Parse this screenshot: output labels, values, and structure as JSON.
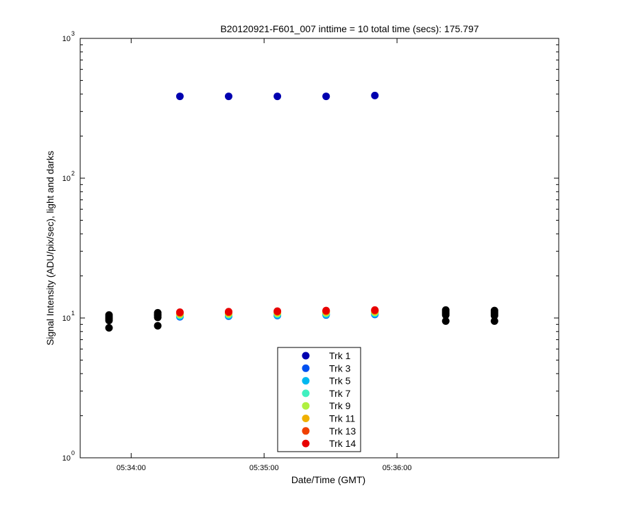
{
  "chart_data": {
    "type": "scatter",
    "title": "B20120921-F601_007 inttime = 10 total time (secs): 175.797",
    "xlabel": "Date/Time (GMT)",
    "ylabel": "Signal Intensity (ADU/pix/sec), light and darks",
    "yscale": "log",
    "ylim": [
      1,
      1000
    ],
    "xlim": [
      "05:33:37",
      "05:37:13"
    ],
    "xticks": [
      "05:34:00",
      "05:35:00",
      "05:36:00"
    ],
    "yticks": [
      {
        "base": "10",
        "exp": "0",
        "value": 1
      },
      {
        "base": "10",
        "exp": "1",
        "value": 10
      },
      {
        "base": "10",
        "exp": "2",
        "value": 100
      },
      {
        "base": "10",
        "exp": "3",
        "value": 1000
      }
    ],
    "grid": false,
    "legend_position": "bottom-center",
    "series": [
      {
        "name": "Trk 1",
        "color": "#0000b0",
        "x": [
          "05:34:22",
          "05:34:44",
          "05:35:06",
          "05:35:28",
          "05:35:50"
        ],
        "y": [
          385,
          385,
          385,
          385,
          390
        ]
      },
      {
        "name": "Trk 3",
        "color": "#0050f0",
        "x": [
          "05:34:22",
          "05:34:44",
          "05:35:06",
          "05:35:28",
          "05:35:50"
        ],
        "y": [
          10.2,
          10.3,
          10.4,
          10.5,
          10.6
        ]
      },
      {
        "name": "Trk 5",
        "color": "#00b8f0",
        "x": [
          "05:34:22",
          "05:34:44",
          "05:35:06",
          "05:35:28",
          "05:35:50"
        ],
        "y": [
          10.3,
          10.4,
          10.5,
          10.6,
          10.7
        ]
      },
      {
        "name": "Trk 7",
        "color": "#40f0c0",
        "x": [
          "05:34:22",
          "05:34:44",
          "05:35:06",
          "05:35:28",
          "05:35:50"
        ],
        "y": [
          10.5,
          10.6,
          10.7,
          10.8,
          10.9
        ]
      },
      {
        "name": "Trk 9",
        "color": "#b0f040",
        "x": [
          "05:34:22",
          "05:34:44",
          "05:35:06",
          "05:35:28",
          "05:35:50"
        ],
        "y": [
          10.6,
          10.7,
          10.8,
          10.9,
          11.0
        ]
      },
      {
        "name": "Trk 11",
        "color": "#f0b000",
        "x": [
          "05:34:22",
          "05:34:44",
          "05:35:06",
          "05:35:28",
          "05:35:50"
        ],
        "y": [
          10.8,
          10.9,
          11.0,
          11.1,
          11.2
        ]
      },
      {
        "name": "Trk 13",
        "color": "#f04000",
        "x": [
          "05:34:22",
          "05:34:44",
          "05:35:06",
          "05:35:28",
          "05:35:50"
        ],
        "y": [
          10.9,
          11.0,
          11.1,
          11.2,
          11.3
        ]
      },
      {
        "name": "Trk 14",
        "color": "#e80000",
        "x": [
          "05:34:22",
          "05:34:44",
          "05:35:06",
          "05:35:28",
          "05:35:50"
        ],
        "y": [
          11.0,
          11.1,
          11.2,
          11.3,
          11.4
        ]
      }
    ],
    "darks": {
      "color": "#000000",
      "points": [
        {
          "x": "05:33:50",
          "y": 8.5
        },
        {
          "x": "05:33:50",
          "y": 9.6
        },
        {
          "x": "05:33:50",
          "y": 9.9
        },
        {
          "x": "05:33:50",
          "y": 10.2
        },
        {
          "x": "05:33:50",
          "y": 10.5
        },
        {
          "x": "05:34:12",
          "y": 8.8
        },
        {
          "x": "05:34:12",
          "y": 10.1
        },
        {
          "x": "05:34:12",
          "y": 10.4
        },
        {
          "x": "05:34:12",
          "y": 10.6
        },
        {
          "x": "05:34:12",
          "y": 10.9
        },
        {
          "x": "05:36:22",
          "y": 9.5
        },
        {
          "x": "05:36:22",
          "y": 10.5
        },
        {
          "x": "05:36:22",
          "y": 10.8
        },
        {
          "x": "05:36:22",
          "y": 11.1
        },
        {
          "x": "05:36:22",
          "y": 11.4
        },
        {
          "x": "05:36:44",
          "y": 9.5
        },
        {
          "x": "05:36:44",
          "y": 10.4
        },
        {
          "x": "05:36:44",
          "y": 10.7
        },
        {
          "x": "05:36:44",
          "y": 11.0
        },
        {
          "x": "05:36:44",
          "y": 11.3
        }
      ]
    }
  }
}
